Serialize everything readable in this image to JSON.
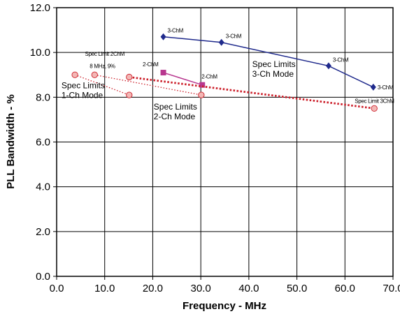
{
  "chart_data": {
    "type": "line",
    "xlabel": "Frequency - MHz",
    "ylabel": "PLL Bandwidth - %",
    "xlim": [
      0,
      70
    ],
    "ylim": [
      0,
      12
    ],
    "grid": true,
    "x_ticks": [
      0,
      10,
      20,
      30,
      40,
      50,
      60,
      70
    ],
    "x_tick_labels": [
      "0.0",
      "10.0",
      "20.0",
      "30.0",
      "40.0",
      "50.0",
      "60.0",
      "70.0"
    ],
    "y_ticks": [
      0,
      2,
      4,
      6,
      8,
      10,
      12
    ],
    "y_tick_labels": [
      "0.0",
      "2.0",
      "4.0",
      "6.0",
      "8.0",
      "10.0",
      "12.0"
    ],
    "series": [
      {
        "color": "#1f2a8c",
        "marker": "diamond",
        "dash": "solid",
        "points": [
          [
            22.2,
            10.7
          ],
          [
            34.3,
            10.45
          ],
          [
            56.6,
            9.4
          ],
          [
            65.9,
            8.45
          ]
        ],
        "point_labels": [
          "3-ChM",
          "3-ChM",
          "3-ChM",
          "3-ChM"
        ]
      },
      {
        "color": "#b8378f",
        "marker": "square",
        "dash": "solid",
        "points": [
          [
            22.2,
            9.1
          ],
          [
            30.3,
            8.55
          ]
        ],
        "point_labels": [
          "2-ChM",
          "2-ChM"
        ]
      },
      {
        "color": "#cc1f2a",
        "marker": "circle",
        "dash": "dotted",
        "points": [
          [
            3.8,
            9.0
          ],
          [
            15.1,
            8.1
          ]
        ],
        "point_labels": [
          "",
          ""
        ]
      },
      {
        "color": "#cc1f2a",
        "marker": "circle",
        "dash": "dotted",
        "points": [
          [
            7.9,
            9.0
          ],
          [
            30.1,
            8.1
          ]
        ],
        "point_labels": [
          "8 MHz, 9%",
          ""
        ]
      },
      {
        "color": "#cc1f2a",
        "marker": "circle",
        "dash": "dotted-thick",
        "points": [
          [
            15.1,
            8.9
          ],
          [
            66.1,
            7.5
          ]
        ],
        "point_labels": [
          "",
          "Spec Limit 3ChM"
        ]
      }
    ],
    "annotations": [
      {
        "lines": [
          "Spec Limits",
          "1-Ch Mode"
        ],
        "x": 1.0,
        "y": 8.4
      },
      {
        "lines": [
          "Spec Limits",
          "2-Ch Mode"
        ],
        "x": 20.2,
        "y": 7.45
      },
      {
        "lines": [
          "Spec Limits",
          "3-Ch Mode"
        ],
        "x": 40.7,
        "y": 9.35
      },
      {
        "lines": [
          "Spec Limit 2ChM"
        ],
        "x": 5.9,
        "y": 9.85,
        "small": true
      }
    ]
  }
}
